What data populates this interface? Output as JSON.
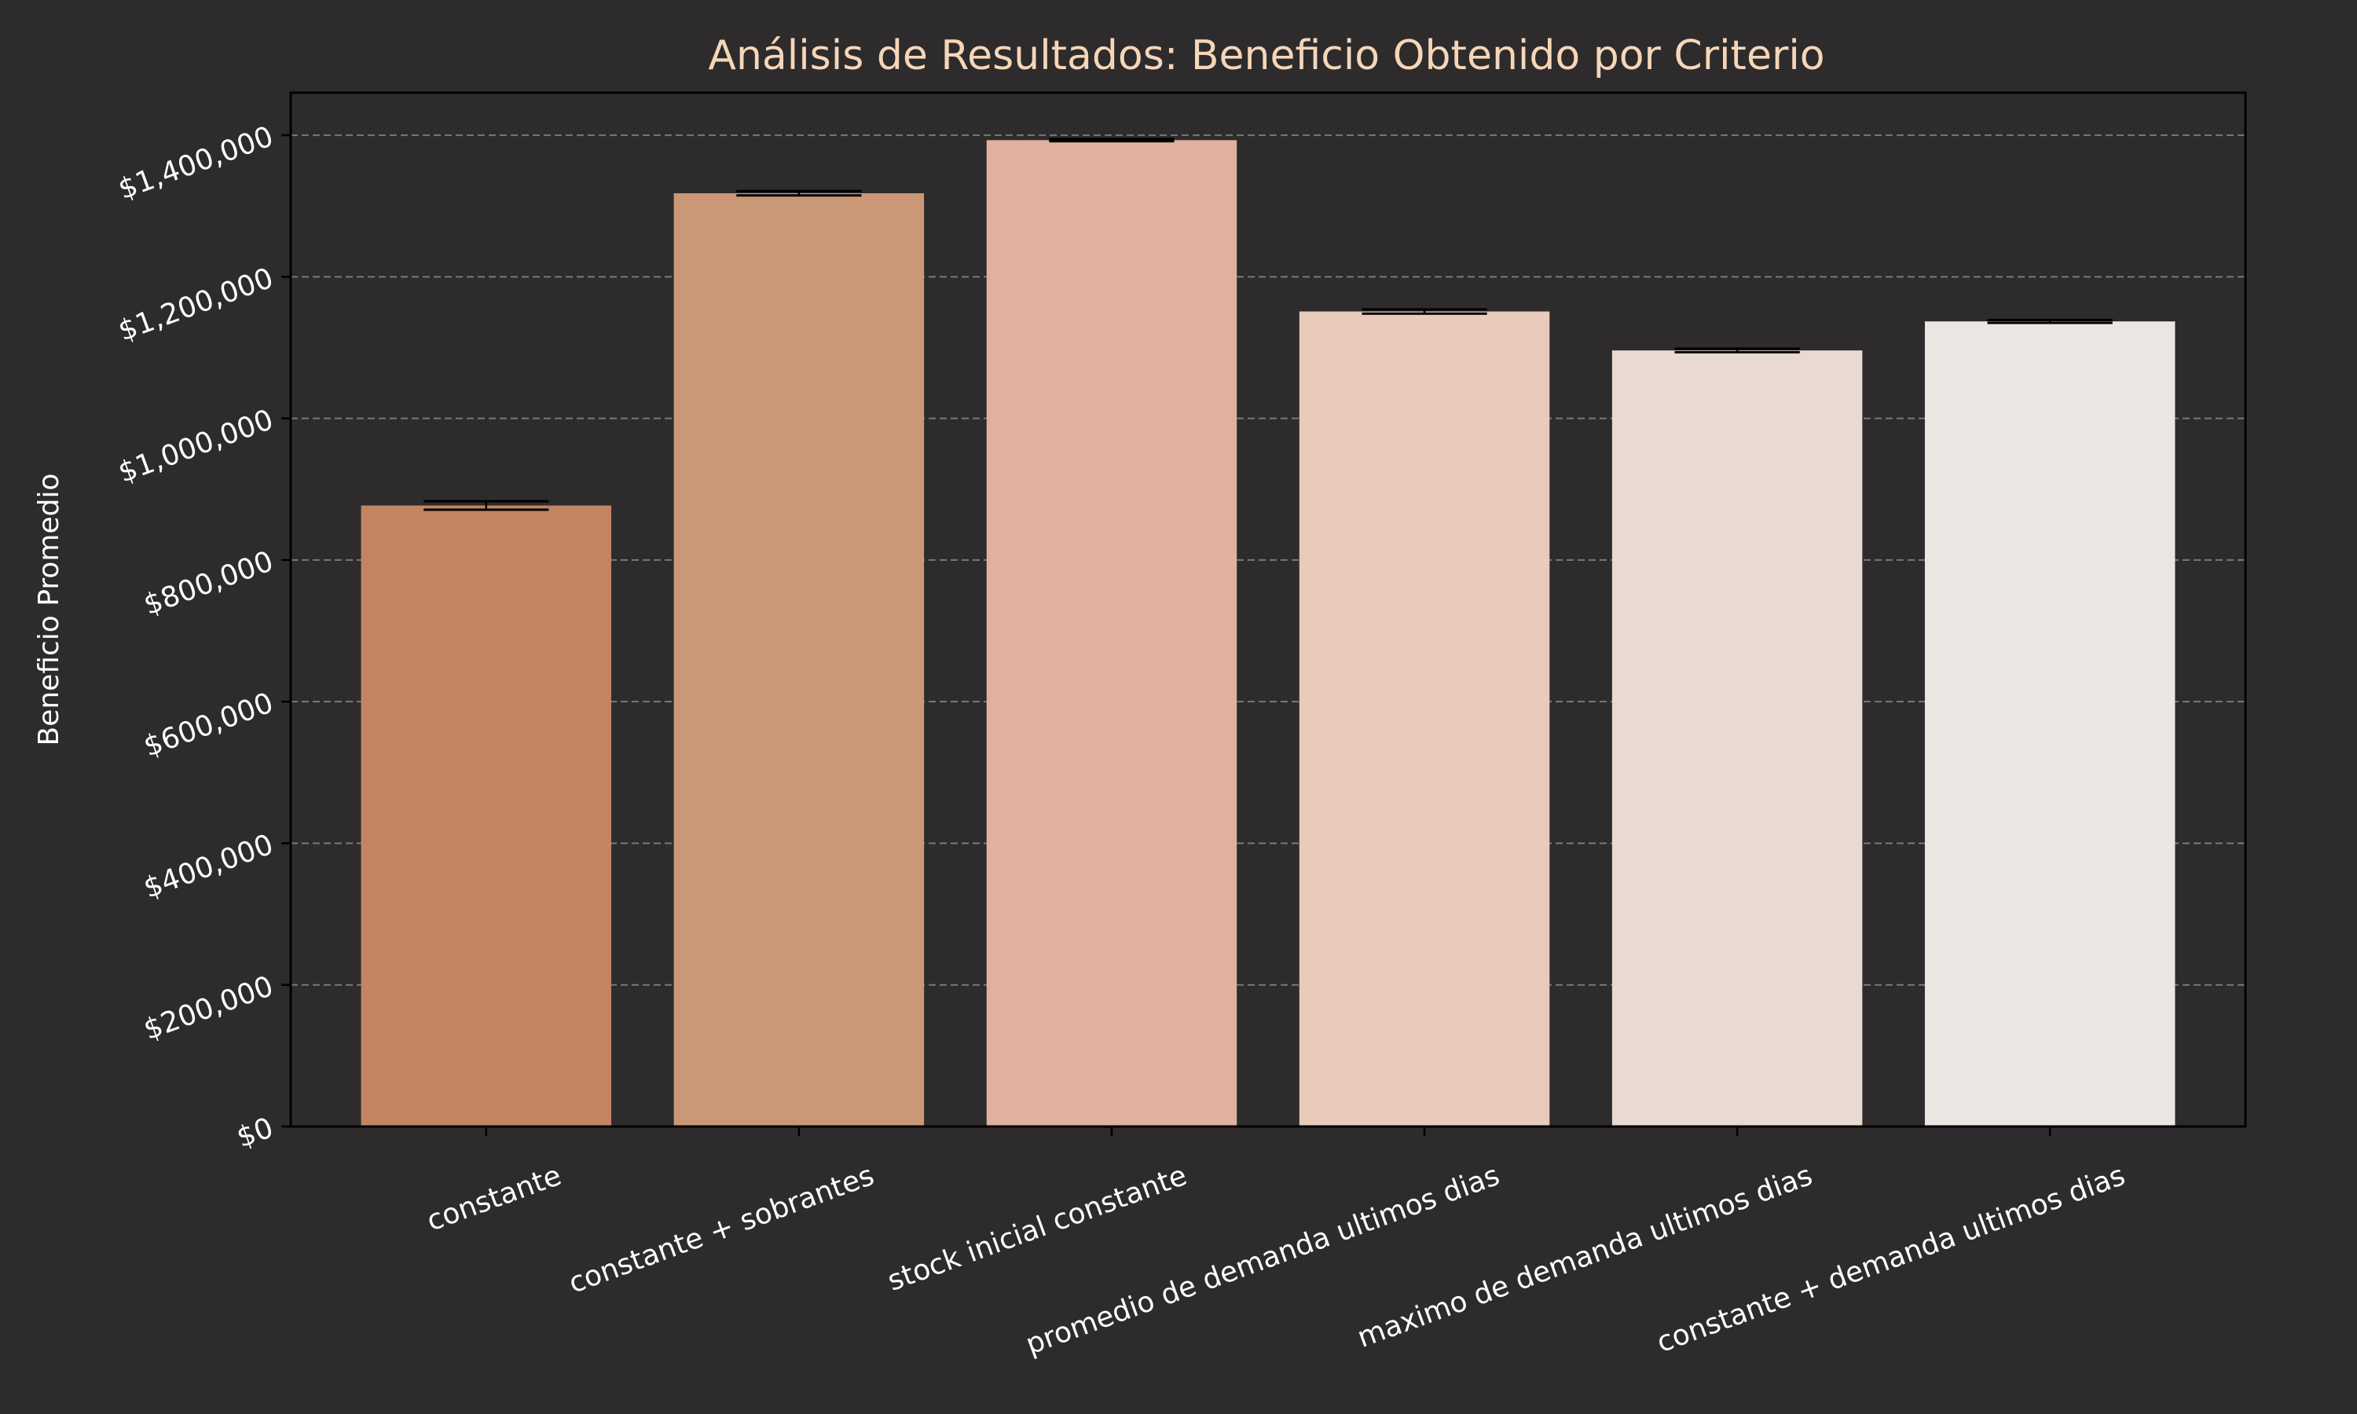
{
  "chart_data": {
    "type": "bar",
    "title": "Análisis de Resultados: Beneficio Obtenido por Criterio",
    "xlabel": "",
    "ylabel": "Beneficio Promedio",
    "ylim": [
      0,
      1460000
    ],
    "yticks": [
      0,
      200000,
      400000,
      600000,
      800000,
      1000000,
      1200000,
      1400000
    ],
    "ytick_labels": [
      "$0",
      "$200,000",
      "$400,000",
      "$600,000",
      "$800,000",
      "$1,000,000",
      "$1,200,000",
      "$1,400,000"
    ],
    "grid": true,
    "categories": [
      "constante",
      "constante + sobrantes",
      "stock inicial constante",
      "promedio de demanda ultimos dias",
      "maximo de demanda ultimos dias",
      "constante + demanda ultimos dias"
    ],
    "values": [
      877000,
      1318000,
      1393000,
      1151000,
      1096000,
      1137000
    ],
    "errors": [
      6000,
      3000,
      1500,
      3000,
      2500,
      2000
    ],
    "bar_colors": [
      "#c38462",
      "#cb9877",
      "#dfb19e",
      "#e8cbba",
      "#e8dad0",
      "#eae6e2"
    ],
    "colors": {
      "background": "#2d2b2c",
      "title": "#f6d6b8",
      "text": "#ffffff",
      "grid": "#7a7878",
      "axis": "#000000"
    }
  }
}
